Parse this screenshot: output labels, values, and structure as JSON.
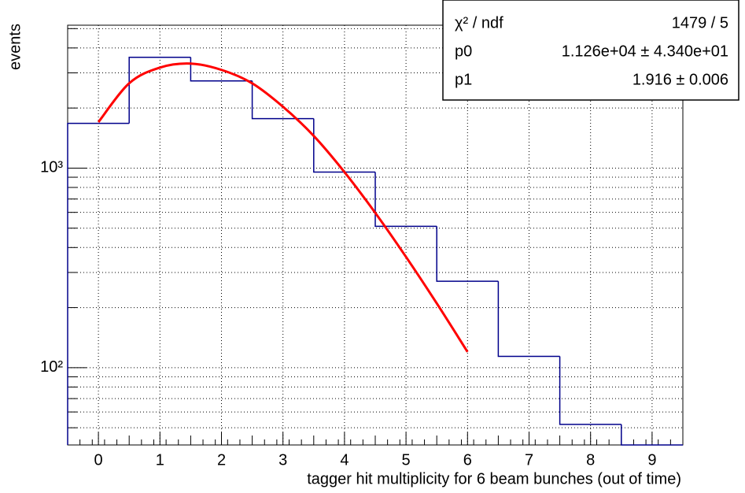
{
  "chart_data": {
    "type": "histogram",
    "ylabel": "events",
    "xlabel": "tagger hit multiplicity for 6 beam bunches (out of time)",
    "bins": [
      -0.5,
      0.5,
      1.5,
      2.5,
      3.5,
      4.5,
      5.5,
      6.5,
      7.5,
      8.5,
      9.5
    ],
    "values": [
      1675,
      3590,
      2735,
      1770,
      955,
      511,
      271,
      114,
      52,
      0
    ],
    "color": "#00008b",
    "fit": {
      "color": "#ff0000",
      "x": [
        0,
        0.5,
        1,
        1.5,
        2,
        2.5,
        3,
        3.5,
        4,
        4.5,
        5,
        5.5,
        6
      ],
      "y": [
        1700,
        2660,
        3190,
        3340,
        3105,
        2660,
        2030,
        1450,
        955,
        597,
        359,
        210,
        120
      ]
    },
    "xlim": [
      -0.5,
      9.5
    ],
    "xticks": [
      0,
      1,
      2,
      3,
      4,
      5,
      6,
      7,
      8,
      9
    ],
    "ylim": [
      41,
      5200
    ],
    "log_y": true,
    "yticks": [
      {
        "value": 100,
        "label": "10²"
      },
      {
        "value": 1000,
        "label": "10³"
      }
    ],
    "yminor_ticks": [
      50,
      60,
      70,
      80,
      90,
      200,
      300,
      400,
      500,
      600,
      700,
      800,
      900,
      2000,
      3000,
      4000,
      5000
    ],
    "grid": true,
    "stats": [
      {
        "name": "χ² / ndf",
        "value": "1479 / 5"
      },
      {
        "name": "p0",
        "value": "1.126e+04 ± 4.340e+01"
      },
      {
        "name": "p1",
        "value": "1.916 ± 0.006"
      }
    ]
  }
}
